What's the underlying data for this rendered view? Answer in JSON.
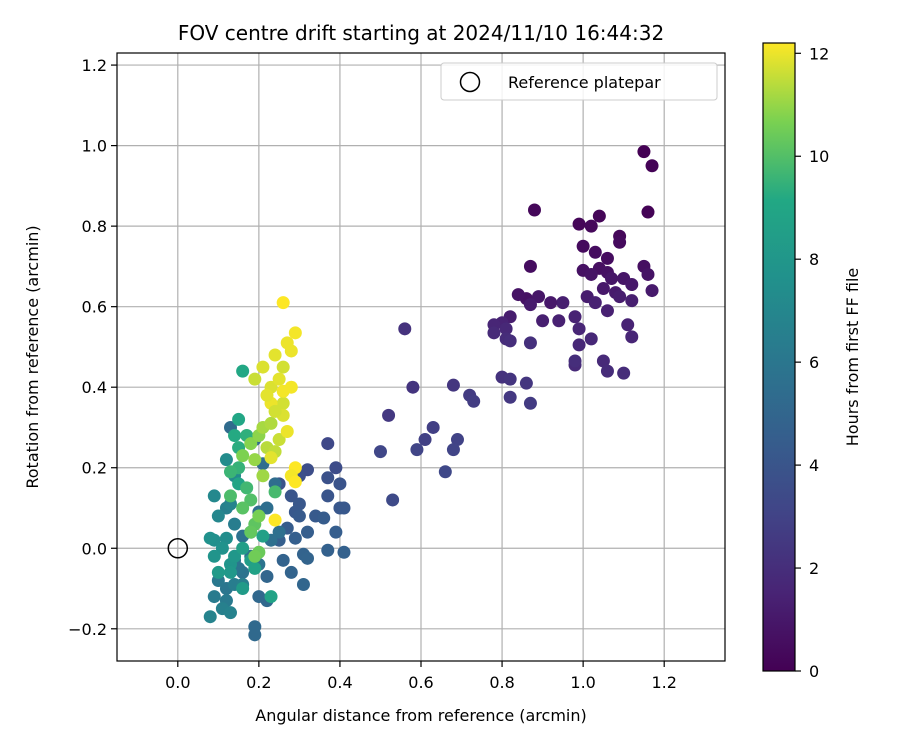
{
  "chart_data": {
    "type": "scatter",
    "title": "FOV centre drift starting at 2024/11/10 16:44:32",
    "xlabel": "Angular distance from reference (arcmin)",
    "ylabel": "Rotation from reference (arcmin)",
    "xlim": [
      -0.15,
      1.35
    ],
    "ylim": [
      -0.28,
      1.23
    ],
    "xticks": [
      0.0,
      0.2,
      0.4,
      0.6,
      0.8,
      1.0,
      1.2
    ],
    "yticks": [
      -0.2,
      0.0,
      0.2,
      0.4,
      0.6,
      0.8,
      1.0,
      1.2
    ],
    "xtick_labels": [
      "0.0",
      "0.2",
      "0.4",
      "0.6",
      "0.8",
      "1.0",
      "1.2"
    ],
    "ytick_labels": [
      "−0.2",
      "0.0",
      "0.2",
      "0.4",
      "0.6",
      "0.8",
      "1.0",
      "1.2"
    ],
    "grid": true,
    "legend": {
      "position": "upper-right",
      "label": "Reference platepar",
      "marker": "open-circle"
    },
    "reference_point": {
      "x": 0.0,
      "y": 0.0
    },
    "colormap": "viridis",
    "colorbar": {
      "label": "Hours from first FF file",
      "range": [
        0,
        12.2
      ],
      "ticks": [
        0,
        2,
        4,
        6,
        8,
        10,
        12
      ],
      "tick_labels": [
        "0",
        "2",
        "4",
        "6",
        "8",
        "10",
        "12"
      ]
    },
    "point_fields": [
      "x",
      "y",
      "hours"
    ],
    "points": [
      [
        1.15,
        0.985,
        0.0
      ],
      [
        1.17,
        0.95,
        0.1
      ],
      [
        1.16,
        0.835,
        0.1
      ],
      [
        1.04,
        0.825,
        0.2
      ],
      [
        0.99,
        0.805,
        0.2
      ],
      [
        1.02,
        0.8,
        0.3
      ],
      [
        1.09,
        0.775,
        0.3
      ],
      [
        1.09,
        0.76,
        0.4
      ],
      [
        1.0,
        0.75,
        0.4
      ],
      [
        1.03,
        0.735,
        0.5
      ],
      [
        1.06,
        0.72,
        0.5
      ],
      [
        1.15,
        0.7,
        0.6
      ],
      [
        1.04,
        0.695,
        0.6
      ],
      [
        1.0,
        0.69,
        0.7
      ],
      [
        1.06,
        0.685,
        0.7
      ],
      [
        1.02,
        0.68,
        0.8
      ],
      [
        1.16,
        0.68,
        0.8
      ],
      [
        1.07,
        0.67,
        0.9
      ],
      [
        1.1,
        0.67,
        0.9
      ],
      [
        1.12,
        0.655,
        1.0
      ],
      [
        1.05,
        0.645,
        1.0
      ],
      [
        1.08,
        0.635,
        1.1
      ],
      [
        1.17,
        0.64,
        1.1
      ],
      [
        1.01,
        0.625,
        1.2
      ],
      [
        1.09,
        0.625,
        1.2
      ],
      [
        1.12,
        0.615,
        1.3
      ],
      [
        0.95,
        0.61,
        1.3
      ],
      [
        1.03,
        0.61,
        1.4
      ],
      [
        1.06,
        0.59,
        1.4
      ],
      [
        0.98,
        0.575,
        1.5
      ],
      [
        1.11,
        0.555,
        1.5
      ],
      [
        0.99,
        0.545,
        1.6
      ],
      [
        1.12,
        0.525,
        1.6
      ],
      [
        1.02,
        0.52,
        1.7
      ],
      [
        0.99,
        0.505,
        1.7
      ],
      [
        1.05,
        0.465,
        1.8
      ],
      [
        0.98,
        0.455,
        1.8
      ],
      [
        1.06,
        0.44,
        1.9
      ],
      [
        1.1,
        0.435,
        1.9
      ],
      [
        0.98,
        0.465,
        2.0
      ],
      [
        0.88,
        0.84,
        0.3
      ],
      [
        0.87,
        0.7,
        0.5
      ],
      [
        0.86,
        0.62,
        0.7
      ],
      [
        0.84,
        0.63,
        0.8
      ],
      [
        0.89,
        0.625,
        0.9
      ],
      [
        0.92,
        0.61,
        1.0
      ],
      [
        0.87,
        0.605,
        1.1
      ],
      [
        0.82,
        0.575,
        1.2
      ],
      [
        0.9,
        0.565,
        1.3
      ],
      [
        0.94,
        0.565,
        1.4
      ],
      [
        0.8,
        0.56,
        1.5
      ],
      [
        0.78,
        0.555,
        1.6
      ],
      [
        0.81,
        0.545,
        1.7
      ],
      [
        0.78,
        0.535,
        1.8
      ],
      [
        0.81,
        0.52,
        1.9
      ],
      [
        0.82,
        0.515,
        2.0
      ],
      [
        0.87,
        0.51,
        2.1
      ],
      [
        0.8,
        0.425,
        2.2
      ],
      [
        0.82,
        0.42,
        2.3
      ],
      [
        0.86,
        0.41,
        2.4
      ],
      [
        0.82,
        0.375,
        2.5
      ],
      [
        0.87,
        0.36,
        2.6
      ],
      [
        0.56,
        0.545,
        2.2
      ],
      [
        0.58,
        0.4,
        2.3
      ],
      [
        0.68,
        0.405,
        2.4
      ],
      [
        0.52,
        0.33,
        2.5
      ],
      [
        0.72,
        0.38,
        2.6
      ],
      [
        0.73,
        0.365,
        2.7
      ],
      [
        0.63,
        0.3,
        2.8
      ],
      [
        0.61,
        0.27,
        2.9
      ],
      [
        0.69,
        0.27,
        3.0
      ],
      [
        0.59,
        0.245,
        3.1
      ],
      [
        0.68,
        0.245,
        3.1
      ],
      [
        0.5,
        0.24,
        3.2
      ],
      [
        0.66,
        0.19,
        3.3
      ],
      [
        0.53,
        0.12,
        3.4
      ],
      [
        0.37,
        0.26,
        3.3
      ],
      [
        0.39,
        0.2,
        3.5
      ],
      [
        0.32,
        0.195,
        3.6
      ],
      [
        0.3,
        0.18,
        3.7
      ],
      [
        0.37,
        0.175,
        3.8
      ],
      [
        0.25,
        0.16,
        3.9
      ],
      [
        0.4,
        0.16,
        3.9
      ],
      [
        0.28,
        0.13,
        4.0
      ],
      [
        0.37,
        0.13,
        4.0
      ],
      [
        0.3,
        0.11,
        4.1
      ],
      [
        0.4,
        0.1,
        4.1
      ],
      [
        0.41,
        0.1,
        4.2
      ],
      [
        0.29,
        0.09,
        4.2
      ],
      [
        0.3,
        0.08,
        4.3
      ],
      [
        0.34,
        0.08,
        4.3
      ],
      [
        0.36,
        0.075,
        4.4
      ],
      [
        0.27,
        0.05,
        4.4
      ],
      [
        0.32,
        0.04,
        4.5
      ],
      [
        0.39,
        0.04,
        4.5
      ],
      [
        0.29,
        0.025,
        4.6
      ],
      [
        0.25,
        0.02,
        4.6
      ],
      [
        0.37,
        -0.005,
        4.7
      ],
      [
        0.41,
        -0.01,
        4.7
      ],
      [
        0.31,
        -0.015,
        4.8
      ],
      [
        0.26,
        -0.03,
        4.8
      ],
      [
        0.32,
        -0.025,
        4.9
      ],
      [
        0.28,
        -0.06,
        4.9
      ],
      [
        0.31,
        -0.09,
        5.0
      ],
      [
        0.22,
        -0.07,
        5.0
      ],
      [
        0.2,
        -0.12,
        5.1
      ],
      [
        0.22,
        -0.13,
        5.1
      ],
      [
        0.19,
        -0.195,
        5.2
      ],
      [
        0.19,
        -0.215,
        5.2
      ],
      [
        0.13,
        0.3,
        5.3
      ],
      [
        0.19,
        0.27,
        5.3
      ],
      [
        0.21,
        0.21,
        5.4
      ],
      [
        0.24,
        0.16,
        5.4
      ],
      [
        0.22,
        0.1,
        5.5
      ],
      [
        0.2,
        0.09,
        5.5
      ],
      [
        0.25,
        0.04,
        5.6
      ],
      [
        0.23,
        0.02,
        5.6
      ],
      [
        0.16,
        0.03,
        5.7
      ],
      [
        0.18,
        -0.02,
        5.7
      ],
      [
        0.2,
        -0.04,
        5.8
      ],
      [
        0.16,
        -0.06,
        5.8
      ],
      [
        0.14,
        -0.03,
        5.9
      ],
      [
        0.15,
        -0.05,
        5.9
      ],
      [
        0.12,
        -0.1,
        6.0
      ],
      [
        0.1,
        -0.08,
        6.1
      ],
      [
        0.12,
        -0.13,
        6.2
      ],
      [
        0.09,
        -0.12,
        6.3
      ],
      [
        0.14,
        -0.09,
        6.4
      ],
      [
        0.16,
        -0.09,
        6.5
      ],
      [
        0.11,
        -0.15,
        6.6
      ],
      [
        0.13,
        -0.16,
        6.7
      ],
      [
        0.08,
        -0.17,
        6.8
      ],
      [
        0.18,
        0.04,
        6.2
      ],
      [
        0.14,
        0.06,
        6.4
      ],
      [
        0.12,
        0.1,
        6.6
      ],
      [
        0.13,
        0.11,
        6.8
      ],
      [
        0.1,
        0.08,
        7.0
      ],
      [
        0.09,
        0.13,
        7.1
      ],
      [
        0.14,
        0.18,
        7.2
      ],
      [
        0.12,
        0.22,
        7.3
      ],
      [
        0.12,
        0.025,
        7.4
      ],
      [
        0.09,
        0.02,
        7.5
      ],
      [
        0.08,
        0.025,
        7.6
      ],
      [
        0.11,
        0.0,
        7.7
      ],
      [
        0.09,
        -0.02,
        7.8
      ],
      [
        0.13,
        -0.04,
        7.9
      ],
      [
        0.14,
        -0.02,
        8.0
      ],
      [
        0.13,
        -0.06,
        8.1
      ],
      [
        0.1,
        -0.06,
        8.2
      ],
      [
        0.16,
        -0.1,
        8.3
      ],
      [
        0.18,
        -0.03,
        8.4
      ],
      [
        0.16,
        0.0,
        8.5
      ],
      [
        0.21,
        0.03,
        8.6
      ],
      [
        0.19,
        -0.05,
        8.7
      ],
      [
        0.23,
        -0.12,
        8.8
      ],
      [
        0.15,
        0.16,
        8.9
      ],
      [
        0.15,
        0.32,
        9.0
      ],
      [
        0.16,
        0.44,
        9.1
      ],
      [
        0.14,
        0.28,
        9.2
      ],
      [
        0.15,
        0.25,
        9.3
      ],
      [
        0.17,
        0.28,
        9.4
      ],
      [
        0.15,
        0.2,
        9.5
      ],
      [
        0.13,
        0.19,
        9.6
      ],
      [
        0.17,
        0.15,
        9.7
      ],
      [
        0.24,
        0.14,
        9.8
      ],
      [
        0.13,
        0.13,
        9.9
      ],
      [
        0.18,
        0.12,
        10.0
      ],
      [
        0.16,
        0.1,
        10.1
      ],
      [
        0.19,
        0.06,
        10.2
      ],
      [
        0.18,
        0.04,
        10.3
      ],
      [
        0.2,
        -0.01,
        10.4
      ],
      [
        0.19,
        -0.02,
        10.5
      ],
      [
        0.2,
        0.08,
        10.6
      ],
      [
        0.16,
        0.23,
        10.7
      ],
      [
        0.18,
        0.26,
        10.8
      ],
      [
        0.2,
        0.28,
        10.9
      ],
      [
        0.19,
        0.22,
        11.0
      ],
      [
        0.21,
        0.18,
        11.1
      ],
      [
        0.21,
        0.3,
        11.2
      ],
      [
        0.23,
        0.31,
        11.3
      ],
      [
        0.22,
        0.25,
        11.4
      ],
      [
        0.24,
        0.24,
        11.5
      ],
      [
        0.25,
        0.27,
        11.6
      ],
      [
        0.26,
        0.36,
        11.7
      ],
      [
        0.23,
        0.4,
        11.8
      ],
      [
        0.25,
        0.42,
        11.9
      ],
      [
        0.19,
        0.42,
        11.6
      ],
      [
        0.26,
        0.45,
        11.7
      ],
      [
        0.21,
        0.45,
        11.8
      ],
      [
        0.24,
        0.48,
        11.9
      ],
      [
        0.27,
        0.51,
        12.0
      ],
      [
        0.28,
        0.49,
        12.0
      ],
      [
        0.29,
        0.535,
        12.1
      ],
      [
        0.26,
        0.61,
        12.2
      ],
      [
        0.23,
        0.36,
        12.0
      ],
      [
        0.26,
        0.39,
        12.1
      ],
      [
        0.28,
        0.4,
        12.1
      ],
      [
        0.29,
        0.2,
        12.2
      ],
      [
        0.28,
        0.18,
        12.1
      ],
      [
        0.29,
        0.165,
        12.2
      ],
      [
        0.24,
        0.07,
        12.2
      ],
      [
        0.23,
        0.225,
        11.9
      ],
      [
        0.27,
        0.29,
        12.0
      ],
      [
        0.26,
        0.33,
        11.8
      ],
      [
        0.24,
        0.34,
        11.7
      ],
      [
        0.22,
        0.38,
        11.9
      ]
    ]
  }
}
